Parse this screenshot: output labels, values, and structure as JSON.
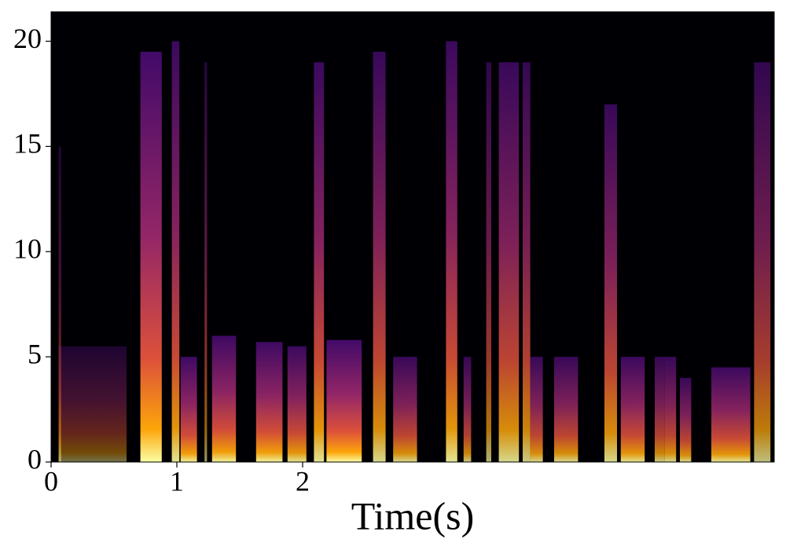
{
  "chart_data": {
    "type": "spectrogram",
    "xlabel": "Time(s)",
    "xlim": [
      0,
      5.75
    ],
    "xticks": [
      0,
      1,
      2
    ],
    "ylim": [
      0,
      21.4
    ],
    "yticks": [
      0,
      5,
      10,
      15,
      20
    ],
    "colormap": [
      "#000004",
      "#420a68",
      "#932667",
      "#dd513a",
      "#fca50a",
      "#fcffa4"
    ],
    "events": [
      {
        "t": [
          0.06,
          0.6
        ],
        "fmax": 5.5,
        "level": 0.45
      },
      {
        "t": [
          0.06,
          0.08
        ],
        "fmax": 15,
        "level": 0.5
      },
      {
        "t": [
          0.71,
          0.88
        ],
        "fmax": 19.5,
        "level": 1
      },
      {
        "t": [
          0.96,
          1.02
        ],
        "fmax": 20,
        "level": 0.9
      },
      {
        "t": [
          1.03,
          1.16
        ],
        "fmax": 5,
        "level": 0.95
      },
      {
        "t": [
          1.22,
          1.24
        ],
        "fmax": 19,
        "level": 0.6
      },
      {
        "t": [
          1.28,
          1.47
        ],
        "fmax": 6,
        "level": 0.95
      },
      {
        "t": [
          1.63,
          1.84
        ],
        "fmax": 5.7,
        "level": 0.95
      },
      {
        "t": [
          1.88,
          2.03
        ],
        "fmax": 5.5,
        "level": 0.9
      },
      {
        "t": [
          2.09,
          2.17
        ],
        "fmax": 19,
        "level": 0.9
      },
      {
        "t": [
          2.19,
          2.47
        ],
        "fmax": 5.8,
        "level": 1
      },
      {
        "t": [
          2.56,
          2.66
        ],
        "fmax": 19.5,
        "level": 0.85
      },
      {
        "t": [
          2.72,
          2.91
        ],
        "fmax": 5,
        "level": 0.85
      },
      {
        "t": [
          3.14,
          3.23
        ],
        "fmax": 20,
        "level": 0.9
      },
      {
        "t": [
          3.28,
          3.34
        ],
        "fmax": 5,
        "level": 0.8
      },
      {
        "t": [
          3.46,
          3.5
        ],
        "fmax": 19,
        "level": 0.7
      },
      {
        "t": [
          3.56,
          3.72
        ],
        "fmax": 19,
        "level": 0.85
      },
      {
        "t": [
          3.75,
          3.81
        ],
        "fmax": 19,
        "level": 0.8
      },
      {
        "t": [
          3.81,
          3.91
        ],
        "fmax": 5,
        "level": 0.85
      },
      {
        "t": [
          4.0,
          4.19
        ],
        "fmax": 5,
        "level": 0.85
      },
      {
        "t": [
          4.4,
          4.5
        ],
        "fmax": 17,
        "level": 0.85
      },
      {
        "t": [
          4.53,
          4.72
        ],
        "fmax": 5,
        "level": 0.9
      },
      {
        "t": [
          4.8,
          4.88
        ],
        "fmax": 5,
        "level": 0.8
      },
      {
        "t": [
          4.88,
          4.97
        ],
        "fmax": 5,
        "level": 0.85
      },
      {
        "t": [
          5.0,
          5.09
        ],
        "fmax": 4,
        "level": 0.85
      },
      {
        "t": [
          5.25,
          5.56
        ],
        "fmax": 4.5,
        "level": 0.9
      },
      {
        "t": [
          5.59,
          5.72
        ],
        "fmax": 19,
        "level": 0.75
      }
    ]
  }
}
